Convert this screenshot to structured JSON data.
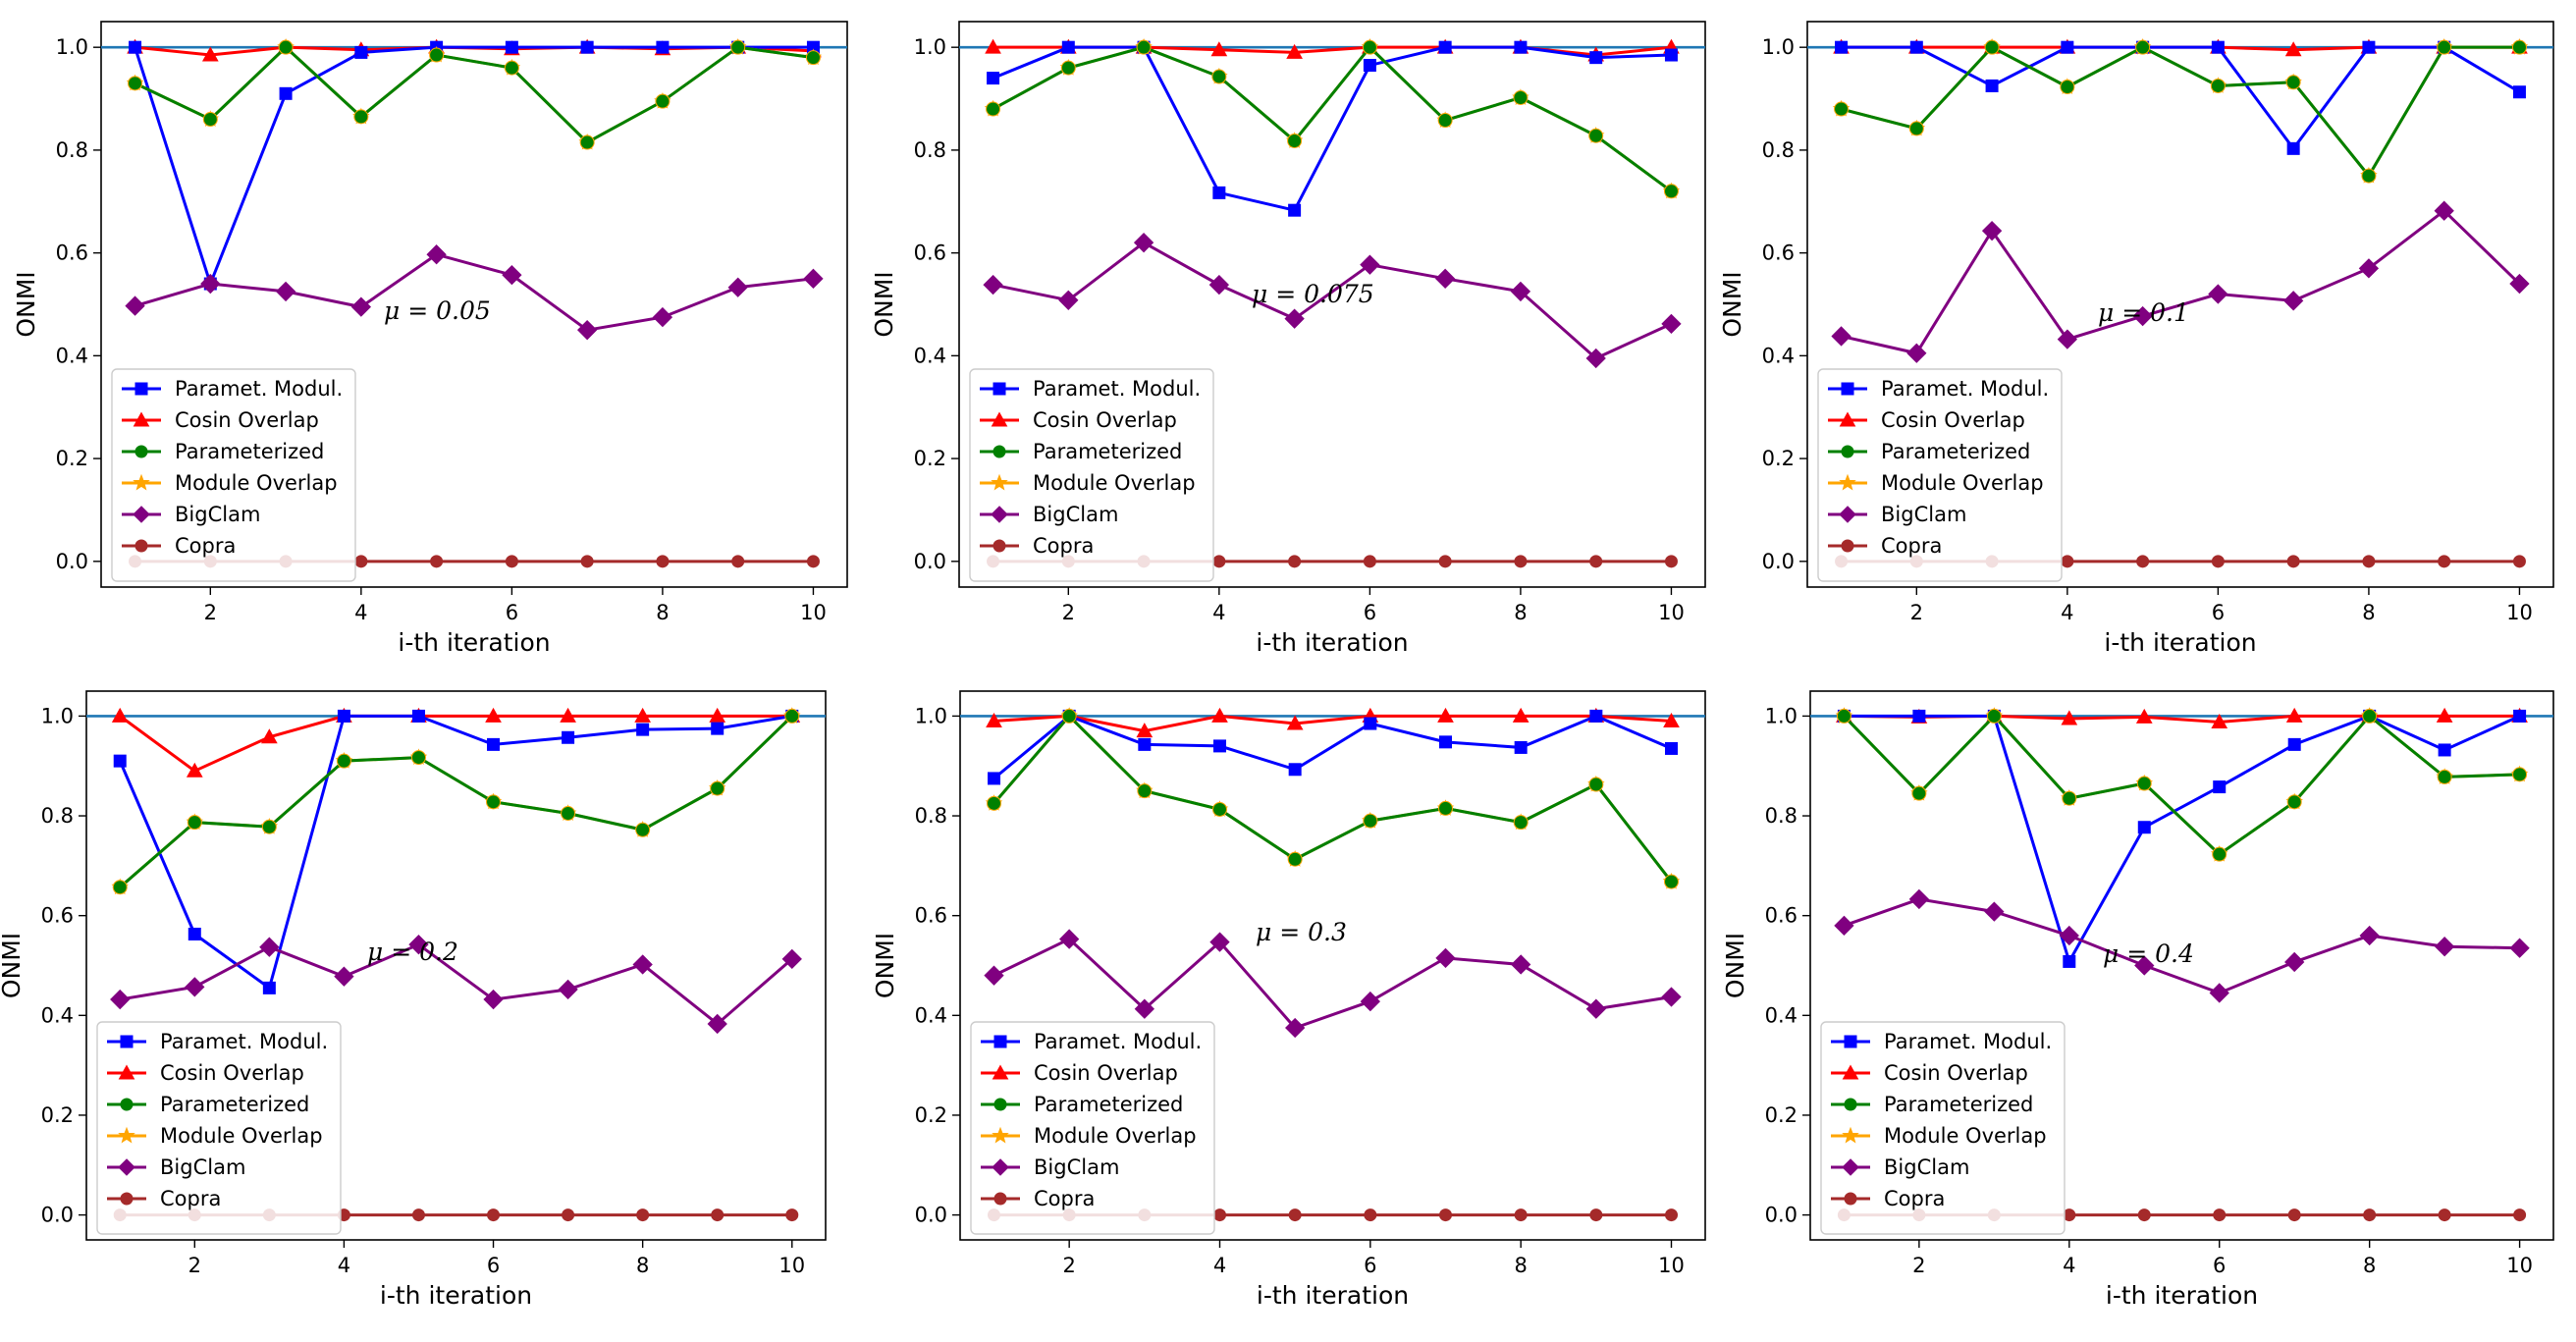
{
  "figure": {
    "xlabel": "i-th iteration",
    "ylabel": "ONMI",
    "xticks": [
      "2",
      "4",
      "6",
      "8",
      "10"
    ],
    "yticks": [
      "0.0",
      "0.2",
      "0.4",
      "0.6",
      "0.8",
      "1.0"
    ]
  },
  "series_styles": [
    {
      "name": "Paramet. Modul.",
      "color": "#0000ff",
      "marker": "square"
    },
    {
      "name": "Cosin Overlap",
      "color": "#ff0000",
      "marker": "triangle"
    },
    {
      "name": "Parameterized",
      "color": "#008000",
      "marker": "circle"
    },
    {
      "name": "Module Overlap",
      "color": "#ffa500",
      "marker": "star"
    },
    {
      "name": "BigClam",
      "color": "#800080",
      "marker": "diamond"
    },
    {
      "name": "Copra",
      "color": "#a52a2a",
      "marker": "circle"
    }
  ],
  "reference_line_color": "#1f77b4",
  "chart_data": [
    {
      "type": "line",
      "annotation": "μ = 0.05",
      "x": [
        1,
        2,
        3,
        4,
        5,
        6,
        7,
        8,
        9,
        10
      ],
      "xlabel": "i-th iteration",
      "ylabel": "ONMI",
      "xlim": [
        0.55,
        10.45
      ],
      "ylim": [
        -0.05,
        1.05
      ],
      "legend_position": "lower-left",
      "reference_line": 1.0,
      "series": [
        {
          "name": "Paramet. Modul.",
          "values": [
            1.0,
            0.54,
            0.91,
            0.99,
            1.0,
            1.0,
            1.0,
            1.0,
            1.0,
            1.0
          ]
        },
        {
          "name": "Cosin Overlap",
          "values": [
            1.0,
            0.985,
            1.0,
            0.995,
            1.0,
            0.997,
            1.0,
            0.997,
            1.0,
            0.993
          ]
        },
        {
          "name": "Parameterized",
          "values": [
            0.93,
            0.86,
            1.0,
            0.865,
            0.985,
            0.96,
            0.815,
            0.895,
            1.0,
            0.98
          ]
        },
        {
          "name": "Module Overlap",
          "values": [
            0.93,
            0.86,
            1.0,
            0.865,
            0.985,
            0.96,
            0.815,
            0.895,
            1.0,
            0.98
          ]
        },
        {
          "name": "BigClam",
          "values": [
            0.497,
            0.54,
            0.525,
            0.495,
            0.597,
            0.557,
            0.45,
            0.475,
            0.533,
            0.55
          ]
        },
        {
          "name": "Copra",
          "values": [
            0,
            0,
            0,
            0,
            0,
            0,
            0,
            0,
            0,
            0
          ]
        }
      ]
    },
    {
      "type": "line",
      "annotation": "μ = 0.075",
      "x": [
        1,
        2,
        3,
        4,
        5,
        6,
        7,
        8,
        9,
        10
      ],
      "xlabel": "i-th iteration",
      "ylabel": "ONMI",
      "xlim": [
        0.55,
        10.45
      ],
      "ylim": [
        -0.05,
        1.05
      ],
      "legend_position": "lower-left",
      "reference_line": 1.0,
      "series": [
        {
          "name": "Paramet. Modul.",
          "values": [
            0.94,
            1.0,
            1.0,
            0.717,
            0.683,
            0.965,
            1.0,
            1.0,
            0.98,
            0.985
          ]
        },
        {
          "name": "Cosin Overlap",
          "values": [
            1.0,
            1.0,
            1.0,
            0.995,
            0.99,
            1.0,
            1.0,
            1.0,
            0.985,
            1.0
          ]
        },
        {
          "name": "Parameterized",
          "values": [
            0.88,
            0.96,
            1.0,
            0.943,
            0.818,
            1.0,
            0.858,
            0.902,
            0.828,
            0.72
          ]
        },
        {
          "name": "Module Overlap",
          "values": [
            0.88,
            0.96,
            1.0,
            0.943,
            0.818,
            1.0,
            0.858,
            0.902,
            0.828,
            0.72
          ]
        },
        {
          "name": "BigClam",
          "values": [
            0.538,
            0.508,
            0.62,
            0.538,
            0.472,
            0.577,
            0.55,
            0.525,
            0.395,
            0.462
          ]
        },
        {
          "name": "Copra",
          "values": [
            0,
            0,
            0,
            0,
            0,
            0,
            0,
            0,
            0,
            0
          ]
        }
      ]
    },
    {
      "type": "line",
      "annotation": "μ = 0.1",
      "x": [
        1,
        2,
        3,
        4,
        5,
        6,
        7,
        8,
        9,
        10
      ],
      "xlabel": "i-th iteration",
      "ylabel": "ONMI",
      "xlim": [
        0.55,
        10.45
      ],
      "ylim": [
        -0.05,
        1.05
      ],
      "legend_position": "lower-left",
      "reference_line": 1.0,
      "series": [
        {
          "name": "Paramet. Modul.",
          "values": [
            1.0,
            1.0,
            0.925,
            1.0,
            1.0,
            1.0,
            0.803,
            1.0,
            1.0,
            0.913
          ]
        },
        {
          "name": "Cosin Overlap",
          "values": [
            1.0,
            1.0,
            1.0,
            1.0,
            1.0,
            1.0,
            0.995,
            1.0,
            1.0,
            1.0
          ]
        },
        {
          "name": "Parameterized",
          "values": [
            0.88,
            0.842,
            1.0,
            0.923,
            1.0,
            0.925,
            0.932,
            0.75,
            1.0,
            1.0
          ]
        },
        {
          "name": "Module Overlap",
          "values": [
            0.88,
            0.842,
            1.0,
            0.923,
            1.0,
            0.925,
            0.932,
            0.75,
            1.0,
            1.0
          ]
        },
        {
          "name": "BigClam",
          "values": [
            0.438,
            0.405,
            0.643,
            0.432,
            0.477,
            0.52,
            0.507,
            0.57,
            0.682,
            0.54
          ]
        },
        {
          "name": "Copra",
          "values": [
            0,
            0,
            0,
            0,
            0,
            0,
            0,
            0,
            0,
            0
          ]
        }
      ]
    },
    {
      "type": "line",
      "annotation": "μ = 0.2",
      "x": [
        1,
        2,
        3,
        4,
        5,
        6,
        7,
        8,
        9,
        10
      ],
      "xlabel": "i-th iteration",
      "ylabel": "ONMI",
      "xlim": [
        0.55,
        10.45
      ],
      "ylim": [
        -0.05,
        1.05
      ],
      "legend_position": "lower-left",
      "reference_line": 1.0,
      "series": [
        {
          "name": "Paramet. Modul.",
          "values": [
            0.91,
            0.563,
            0.455,
            1.0,
            1.0,
            0.943,
            0.957,
            0.973,
            0.975,
            1.0
          ]
        },
        {
          "name": "Cosin Overlap",
          "values": [
            1.0,
            0.89,
            0.958,
            1.0,
            1.0,
            1.0,
            1.0,
            1.0,
            1.0,
            1.0
          ]
        },
        {
          "name": "Parameterized",
          "values": [
            0.657,
            0.787,
            0.778,
            0.91,
            0.917,
            0.828,
            0.805,
            0.772,
            0.855,
            1.0
          ]
        },
        {
          "name": "Module Overlap",
          "values": [
            0.657,
            0.787,
            0.778,
            0.91,
            0.917,
            0.828,
            0.805,
            0.772,
            0.855,
            1.0
          ]
        },
        {
          "name": "BigClam",
          "values": [
            0.432,
            0.457,
            0.537,
            0.478,
            0.542,
            0.432,
            0.452,
            0.502,
            0.383,
            0.513
          ]
        },
        {
          "name": "Copra",
          "values": [
            0,
            0,
            0,
            0,
            0,
            0,
            0,
            0,
            0,
            0
          ]
        }
      ]
    },
    {
      "type": "line",
      "annotation": "μ = 0.3",
      "x": [
        1,
        2,
        3,
        4,
        5,
        6,
        7,
        8,
        9,
        10
      ],
      "xlabel": "i-th iteration",
      "ylabel": "ONMI",
      "xlim": [
        0.55,
        10.45
      ],
      "ylim": [
        -0.05,
        1.05
      ],
      "legend_position": "lower-left",
      "reference_line": 1.0,
      "series": [
        {
          "name": "Paramet. Modul.",
          "values": [
            0.875,
            1.0,
            0.943,
            0.94,
            0.893,
            0.985,
            0.948,
            0.937,
            1.0,
            0.935
          ]
        },
        {
          "name": "Cosin Overlap",
          "values": [
            0.99,
            1.0,
            0.97,
            1.0,
            0.985,
            1.0,
            1.0,
            1.0,
            1.0,
            0.99
          ]
        },
        {
          "name": "Parameterized",
          "values": [
            0.825,
            1.0,
            0.85,
            0.813,
            0.713,
            0.79,
            0.815,
            0.787,
            0.863,
            0.668
          ]
        },
        {
          "name": "Module Overlap",
          "values": [
            0.825,
            1.0,
            0.85,
            0.813,
            0.713,
            0.79,
            0.815,
            0.787,
            0.863,
            0.668
          ]
        },
        {
          "name": "BigClam",
          "values": [
            0.48,
            0.553,
            0.413,
            0.547,
            0.375,
            0.428,
            0.515,
            0.502,
            0.413,
            0.437
          ]
        },
        {
          "name": "Copra",
          "values": [
            0,
            0,
            0,
            0,
            0,
            0,
            0,
            0,
            0,
            0
          ]
        }
      ]
    },
    {
      "type": "line",
      "annotation": "μ = 0.4",
      "x": [
        1,
        2,
        3,
        4,
        5,
        6,
        7,
        8,
        9,
        10
      ],
      "xlabel": "i-th iteration",
      "ylabel": "ONMI",
      "xlim": [
        0.55,
        10.45
      ],
      "ylim": [
        -0.05,
        1.05
      ],
      "legend_position": "lower-left",
      "reference_line": 1.0,
      "series": [
        {
          "name": "Paramet. Modul.",
          "values": [
            1.0,
            1.0,
            1.0,
            0.508,
            0.777,
            0.858,
            0.943,
            1.0,
            0.932,
            1.0
          ]
        },
        {
          "name": "Cosin Overlap",
          "values": [
            1.0,
            0.998,
            1.0,
            0.995,
            0.998,
            0.988,
            1.0,
            1.0,
            1.0,
            1.0
          ]
        },
        {
          "name": "Parameterized",
          "values": [
            1.0,
            0.845,
            1.0,
            0.835,
            0.865,
            0.723,
            0.828,
            1.0,
            0.878,
            0.883
          ]
        },
        {
          "name": "Module Overlap",
          "values": [
            1.0,
            0.845,
            1.0,
            0.835,
            0.865,
            0.723,
            0.828,
            1.0,
            0.878,
            0.883
          ]
        },
        {
          "name": "BigClam",
          "values": [
            0.58,
            0.633,
            0.608,
            0.56,
            0.5,
            0.445,
            0.507,
            0.56,
            0.538,
            0.535
          ]
        },
        {
          "name": "Copra",
          "values": [
            0,
            0,
            0,
            0,
            0,
            0,
            0,
            0,
            0,
            0
          ]
        }
      ]
    }
  ]
}
